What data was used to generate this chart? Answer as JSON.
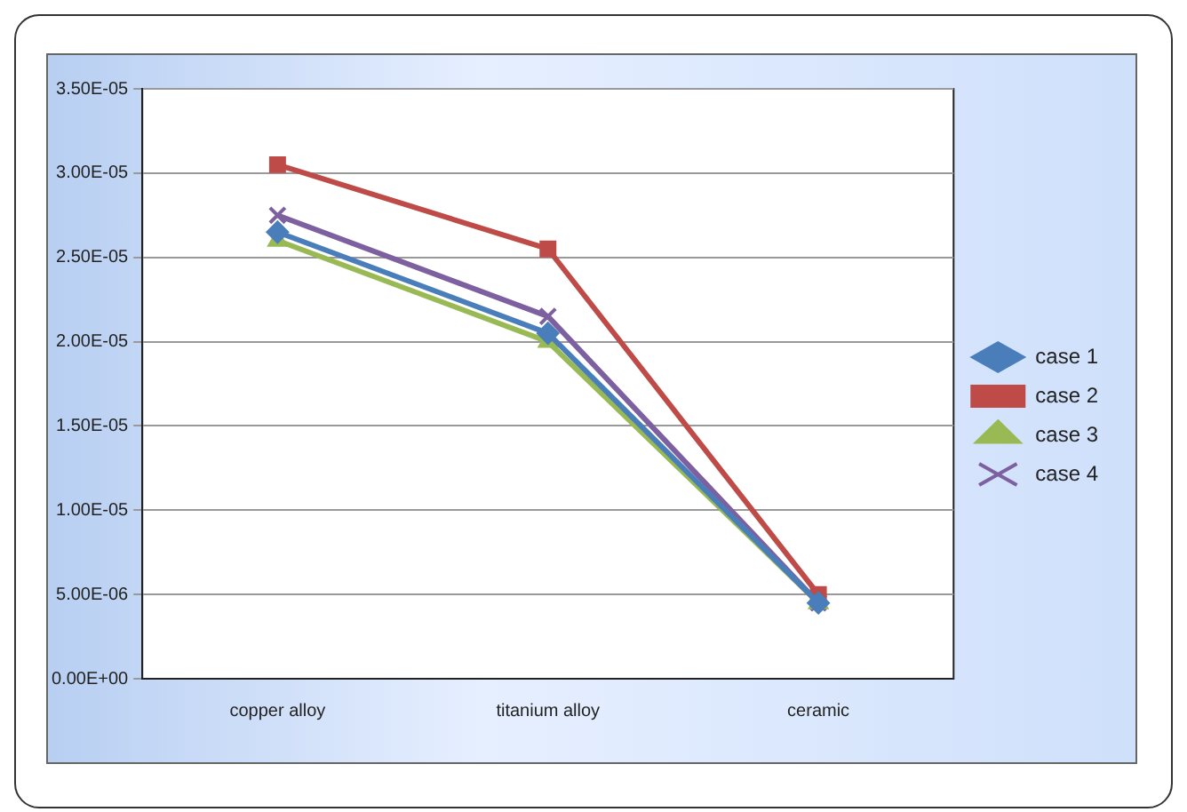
{
  "chart_data": {
    "type": "line",
    "categories": [
      "copper alloy",
      "titanium alloy",
      "ceramic"
    ],
    "series": [
      {
        "name": "case 1",
        "color": "#4a7ebb",
        "marker": "diamond",
        "values": [
          2.65e-05,
          2.05e-05,
          4.5e-06
        ]
      },
      {
        "name": "case 2",
        "color": "#be4b48",
        "marker": "square",
        "values": [
          3.05e-05,
          2.55e-05,
          5e-06
        ]
      },
      {
        "name": "case 3",
        "color": "#98b954",
        "marker": "triangle",
        "values": [
          2.6e-05,
          2e-05,
          4.5e-06
        ]
      },
      {
        "name": "case 4",
        "color": "#7d60a0",
        "marker": "cross",
        "values": [
          2.75e-05,
          2.15e-05,
          4.5e-06
        ]
      }
    ],
    "ylim": [
      0,
      3.5e-05
    ],
    "yticks": [
      {
        "value": 0,
        "label": "0.00E+00"
      },
      {
        "value": 5e-06,
        "label": "5.00E-06"
      },
      {
        "value": 1e-05,
        "label": "1.00E-05"
      },
      {
        "value": 1.5e-05,
        "label": "1.50E-05"
      },
      {
        "value": 2e-05,
        "label": "2.00E-05"
      },
      {
        "value": 2.5e-05,
        "label": "2.50E-05"
      },
      {
        "value": 3e-05,
        "label": "3.00E-05"
      },
      {
        "value": 3.5e-05,
        "label": "3.50E-05"
      }
    ],
    "grid": "y",
    "legend": "right"
  }
}
